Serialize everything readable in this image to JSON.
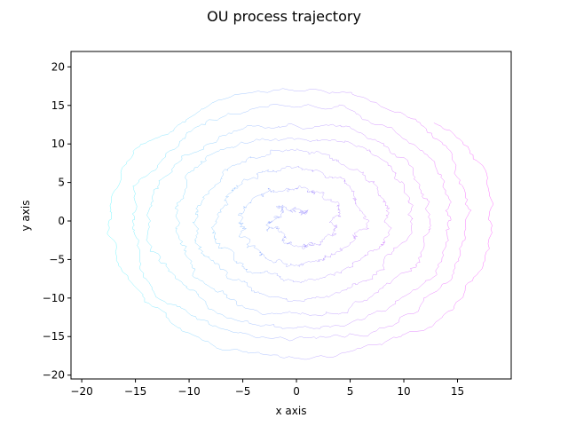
{
  "chart_data": {
    "type": "line",
    "title": "OU process trajectory",
    "xlabel": "x axis",
    "ylabel": "y axis",
    "xlim": [
      -21,
      20
    ],
    "ylim": [
      -20.5,
      22
    ],
    "xticks": [
      -20,
      -15,
      -10,
      -5,
      0,
      5,
      10,
      15
    ],
    "yticks": [
      -20,
      -15,
      -10,
      -5,
      0,
      5,
      10,
      15,
      20
    ],
    "grid": false,
    "legend": "none",
    "colormap": {
      "start": "#00ffff",
      "end": "#ff00ff"
    },
    "series": [
      {
        "trajectory": "noisy outward spiral centered near (0,0), ~8 turns, radius growing from ~1 to ~19",
        "spiral": {
          "center": [
            0,
            0
          ],
          "r_start": 1.0,
          "r_end": 18.5,
          "turns": 8,
          "x_stretch": 1.0,
          "y_stretch": 1.0,
          "noise": 0.45
        },
        "sample_points": [
          {
            "x": 0.5,
            "y": 1.0
          },
          {
            "x": -3.8,
            "y": 2.5
          },
          {
            "x": -6.5,
            "y": -1.0
          },
          {
            "x": 4.0,
            "y": 0.0
          },
          {
            "x": 7.5,
            "y": -2.5
          },
          {
            "x": -10.0,
            "y": 4.0
          },
          {
            "x": 0.0,
            "y": 20.0
          },
          {
            "x": -19.0,
            "y": 6.5
          },
          {
            "x": 18.0,
            "y": 3.0
          },
          {
            "x": 0.0,
            "y": -18.5
          }
        ]
      }
    ]
  }
}
